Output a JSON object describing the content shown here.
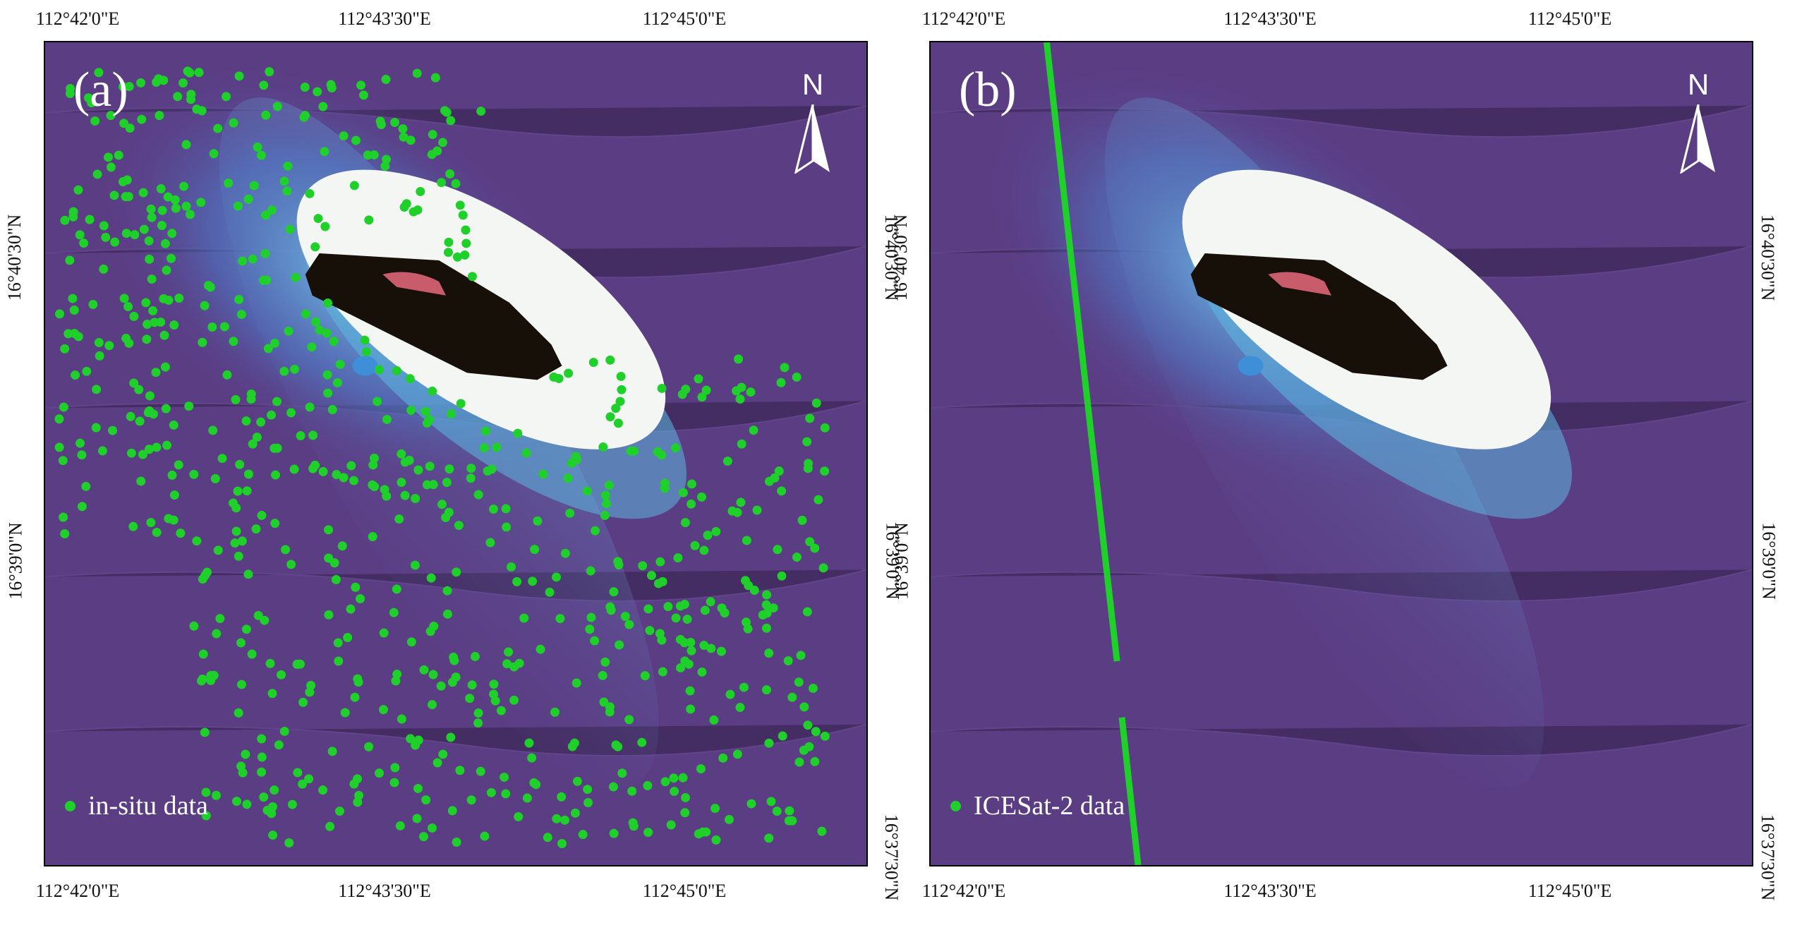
{
  "panels": [
    {
      "label": "(a)",
      "north_letter": "N",
      "legend_label": "in-situ data",
      "lon_labels": [
        "112°42'0\"E",
        "112°43'30\"E",
        "112°45'0\"E"
      ],
      "lat_labels": [
        "16°40'30\"N",
        "16°39'0\"N",
        "16°37'30\"N"
      ]
    },
    {
      "label": "(b)",
      "north_letter": "N",
      "legend_label": "ICESat-2 data",
      "lon_labels": [
        "112°42'0\"E",
        "112°43'30\"E",
        "112°45'0\"E"
      ],
      "lat_labels": [
        "16°40'30\"N",
        "16°39'0\"N",
        "16°37'30\"N"
      ]
    }
  ],
  "colors": {
    "ocean": "#5a3a80",
    "lagoon_blue": "#3f8fd8",
    "reef_white": "#f4f6f4",
    "island_dark": "#161008",
    "data_green": "#1fd02a",
    "map_text": "#ffffff",
    "frame_text": "#111111"
  },
  "icons": [
    "north-arrow-icon",
    "legend-dot-icon"
  ]
}
